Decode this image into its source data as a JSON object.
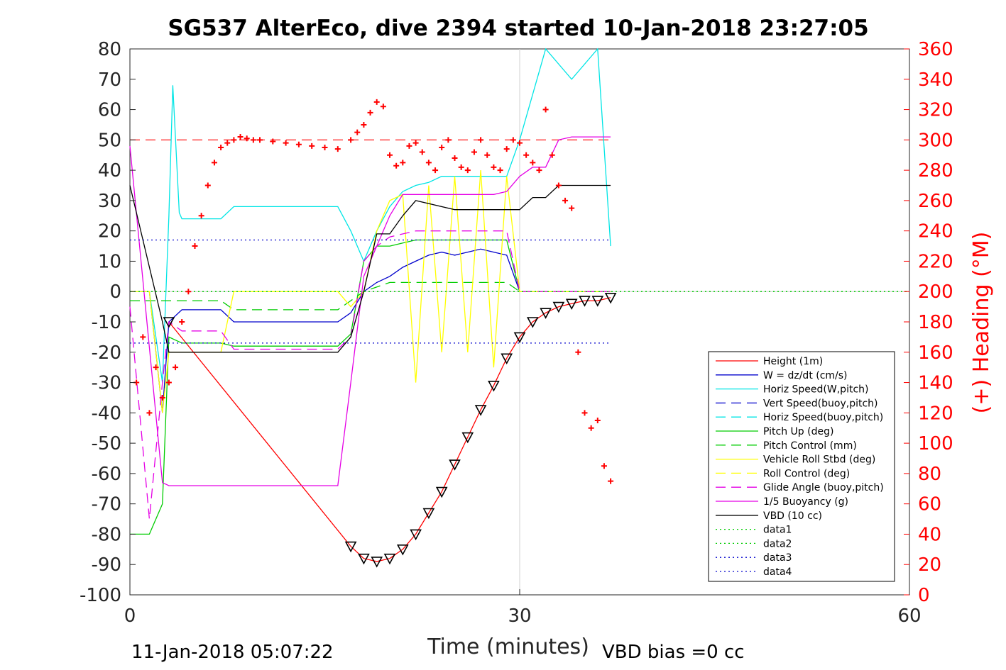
{
  "chart_data": {
    "type": "line",
    "title": "SG537 AlterEco, dive 2394 started 10-Jan-2018 23:27:05",
    "xlabel": "Time (minutes)",
    "ylabel_right": "(+) Heading (°M)",
    "xlim": [
      0,
      60
    ],
    "ylim": [
      -100,
      80
    ],
    "ylim_right": [
      0,
      360
    ],
    "xticks": [
      "0",
      "30",
      "60"
    ],
    "yticks": [
      "80",
      "70",
      "60",
      "50",
      "40",
      "30",
      "20",
      "10",
      "0",
      "-10",
      "-20",
      "-30",
      "-40",
      "-50",
      "-60",
      "-70",
      "-80",
      "-90",
      "-100"
    ],
    "yticks_right": [
      "360",
      "340",
      "320",
      "300",
      "280",
      "260",
      "240",
      "220",
      "200",
      "180",
      "160",
      "140",
      "120",
      "100",
      "80",
      "60",
      "40",
      "20",
      "0"
    ],
    "footer_left": "11-Jan-2018 05:07:22",
    "footer_right": "VBD bias =0 cc",
    "colors": {
      "red": "#ff0000",
      "blue": "#0000cc",
      "cyan": "#00e5e5",
      "green": "#00cc00",
      "yellow": "#ffff00",
      "magenta": "#e500e5",
      "black": "#000000"
    },
    "legend": [
      {
        "name": "Height (1m)",
        "color": "#ff0000",
        "style": "solid"
      },
      {
        "name": "W = dz/dt (cm/s)",
        "color": "#0000cc",
        "style": "solid"
      },
      {
        "name": "Horiz Speed(W,pitch)",
        "color": "#00e5e5",
        "style": "solid"
      },
      {
        "name": "Vert Speed(buoy,pitch)",
        "color": "#0000cc",
        "style": "dashed"
      },
      {
        "name": "Horiz Speed(buoy,pitch)",
        "color": "#00e5e5",
        "style": "dashed"
      },
      {
        "name": "Pitch Up (deg)",
        "color": "#00cc00",
        "style": "solid"
      },
      {
        "name": "Pitch Control (mm)",
        "color": "#00cc00",
        "style": "dashed"
      },
      {
        "name": "Vehicle Roll Stbd (deg)",
        "color": "#ffff00",
        "style": "solid"
      },
      {
        "name": "Roll Control (deg)",
        "color": "#ffff00",
        "style": "dashed"
      },
      {
        "name": "Glide Angle (buoy,pitch)",
        "color": "#e500e5",
        "style": "dashed"
      },
      {
        "name": "1/5 Buoyancy (g)",
        "color": "#e500e5",
        "style": "solid"
      },
      {
        "name": "VBD (10 cc)",
        "color": "#000000",
        "style": "solid"
      },
      {
        "name": "data1",
        "color": "#00cc00",
        "style": "dotted"
      },
      {
        "name": "data2",
        "color": "#00cc00",
        "style": "dotted"
      },
      {
        "name": "data3",
        "color": "#0000cc",
        "style": "dotted"
      },
      {
        "name": "data4",
        "color": "#0000cc",
        "style": "dotted"
      }
    ],
    "series": [
      {
        "name": "Height (1m)",
        "x": [
          3,
          17,
          18,
          19,
          20,
          21,
          22,
          23,
          24,
          25,
          26,
          27,
          28,
          29,
          30,
          31,
          32,
          33,
          34,
          35,
          36,
          37
        ],
        "y": [
          -10,
          -84,
          -88,
          -89,
          -88,
          -85,
          -80,
          -73,
          -66,
          -57,
          -48,
          -39,
          -31,
          -22,
          -15,
          -10,
          -7,
          -5,
          -4,
          -3,
          -3,
          -2
        ]
      },
      {
        "name": "W = dz/dt (cm/s)",
        "x": [
          0,
          1.5,
          2.5,
          3,
          4,
          7,
          8,
          16,
          17,
          18,
          19,
          20,
          21,
          22,
          23,
          24,
          25,
          26,
          27,
          28,
          29,
          30,
          32,
          34,
          36,
          37
        ],
        "y": [
          0,
          0,
          -40,
          -10,
          -6,
          -6,
          -10,
          -10,
          -7,
          0,
          3,
          5,
          8,
          10,
          12,
          13,
          12,
          13,
          14,
          13,
          12,
          0,
          0,
          0,
          0,
          0
        ]
      },
      {
        "name": "Horiz Speed(W,pitch)",
        "x": [
          0,
          1.5,
          2.5,
          3,
          3.3,
          3.8,
          4,
          7,
          8,
          16,
          17,
          18,
          19,
          20,
          21,
          22,
          23,
          24,
          25,
          26,
          27,
          28,
          29,
          30,
          32,
          34,
          36,
          37
        ],
        "y": [
          0,
          0,
          -30,
          25,
          68,
          26,
          24,
          24,
          28,
          28,
          20,
          10,
          20,
          28,
          33,
          35,
          36,
          38,
          38,
          38,
          38,
          38,
          38,
          50,
          80,
          70,
          80,
          15
        ]
      },
      {
        "name": "Pitch Up (deg)",
        "x": [
          0,
          1.5,
          2.5,
          3,
          4,
          7,
          8,
          16,
          17,
          18,
          19,
          20,
          21,
          22,
          23,
          24,
          25,
          26,
          27,
          28,
          29,
          30,
          32,
          34,
          36,
          37
        ],
        "y": [
          -80,
          -80,
          -70,
          -15,
          -17,
          -17,
          -18,
          -18,
          -14,
          10,
          15,
          15,
          16,
          17,
          17,
          17,
          17,
          17,
          17,
          17,
          17,
          0,
          0,
          0,
          0,
          0
        ]
      },
      {
        "name": "Pitch Control (mm)",
        "x": [
          0,
          2.5,
          3,
          7,
          8,
          16,
          17,
          18,
          20,
          22,
          24,
          26,
          28,
          29,
          30,
          32,
          34,
          36,
          37
        ],
        "y": [
          -3,
          -3,
          -3,
          -3,
          -6,
          -6,
          -3,
          0,
          3,
          3,
          3,
          3,
          3,
          3,
          0,
          0,
          0,
          0,
          0
        ]
      },
      {
        "name": "Vehicle Roll Stbd (deg)",
        "x": [
          0,
          1.5,
          2.5,
          3,
          4,
          7,
          8,
          16,
          17,
          18,
          19,
          20,
          21,
          22,
          23,
          24,
          25,
          26,
          27,
          28,
          29,
          30,
          32,
          34,
          36,
          37
        ],
        "y": [
          0,
          0,
          -40,
          -20,
          -20,
          -20,
          0,
          0,
          -5,
          0,
          20,
          30,
          32,
          -30,
          35,
          -20,
          38,
          -20,
          40,
          -25,
          38,
          0,
          0,
          0,
          0,
          0
        ]
      },
      {
        "name": "Glide Angle (buoy,pitch)",
        "x": [
          0,
          1.5,
          2.5,
          3,
          4,
          7,
          8,
          16,
          17,
          18,
          19,
          20,
          22,
          24,
          26,
          28,
          29,
          30,
          32,
          34,
          36,
          37
        ],
        "y": [
          -5,
          -75,
          -30,
          -10,
          -13,
          -13,
          -19,
          -19,
          -15,
          10,
          15,
          18,
          20,
          20,
          20,
          20,
          20,
          0,
          0,
          0,
          0,
          0
        ]
      },
      {
        "name": "1/5 Buoyancy (g)",
        "x": [
          0,
          2.5,
          3,
          16,
          17,
          18,
          19,
          20,
          21,
          22,
          25,
          28,
          29,
          30,
          31,
          32,
          33,
          34,
          35,
          36,
          37
        ],
        "y": [
          48,
          -63,
          -64,
          -64,
          -30,
          5,
          15,
          25,
          32,
          32,
          32,
          32,
          33,
          38,
          41,
          41,
          50,
          51,
          51,
          51,
          51
        ]
      },
      {
        "name": "VBD (10 cc)",
        "x": [
          0,
          2.5,
          3,
          16,
          17,
          18,
          19,
          20,
          21,
          22,
          25,
          28,
          29,
          30,
          31,
          32,
          33,
          34,
          35,
          36,
          37
        ],
        "y": [
          35,
          -10,
          -20,
          -20,
          -15,
          0,
          19,
          19,
          25,
          30,
          27,
          27,
          27,
          27,
          31,
          31,
          35,
          35,
          35,
          35,
          35
        ]
      },
      {
        "name": "Heading",
        "axis": "right",
        "x": [
          0.5,
          1,
          1.5,
          2,
          2.5,
          3,
          3.5,
          4,
          4.5,
          5,
          5.5,
          6,
          6.5,
          7,
          7.5,
          8,
          8.5,
          9,
          9.5,
          10,
          11,
          12,
          13,
          14,
          15,
          16,
          17,
          17.5,
          18,
          18.5,
          19,
          19.5,
          20,
          20.5,
          21,
          21.5,
          22,
          22.5,
          23,
          23.5,
          24,
          24.5,
          25,
          25.5,
          26,
          26.5,
          27,
          27.5,
          28,
          28.5,
          29,
          29.5,
          30,
          30.5,
          31,
          31.5,
          32,
          32.5,
          33,
          33.5,
          34,
          34.5,
          35,
          35.5,
          36,
          36.5,
          37
        ],
        "y": [
          140,
          170,
          120,
          150,
          130,
          140,
          150,
          180,
          200,
          230,
          250,
          270,
          285,
          295,
          298,
          300,
          302,
          301,
          300,
          300,
          299,
          298,
          297,
          296,
          295,
          294,
          300,
          305,
          310,
          318,
          325,
          322,
          290,
          283,
          285,
          296,
          298,
          292,
          285,
          280,
          295,
          300,
          288,
          282,
          280,
          292,
          300,
          290,
          282,
          280,
          294,
          300,
          298,
          290,
          285,
          280,
          320,
          290,
          270,
          260,
          255,
          160,
          120,
          110,
          115,
          85,
          75
        ]
      },
      {
        "name": "data1",
        "x": [
          0,
          60
        ],
        "y": [
          0,
          0
        ]
      },
      {
        "name": "data2",
        "x": [
          0,
          60
        ],
        "y": [
          0,
          0
        ]
      },
      {
        "name": "data3",
        "x": [
          0,
          37
        ],
        "y": [
          17,
          17
        ]
      },
      {
        "name": "data4",
        "x": [
          0,
          37
        ],
        "y": [
          -17,
          -17
        ]
      }
    ],
    "reference_lines": {
      "heading_target": 300
    }
  }
}
